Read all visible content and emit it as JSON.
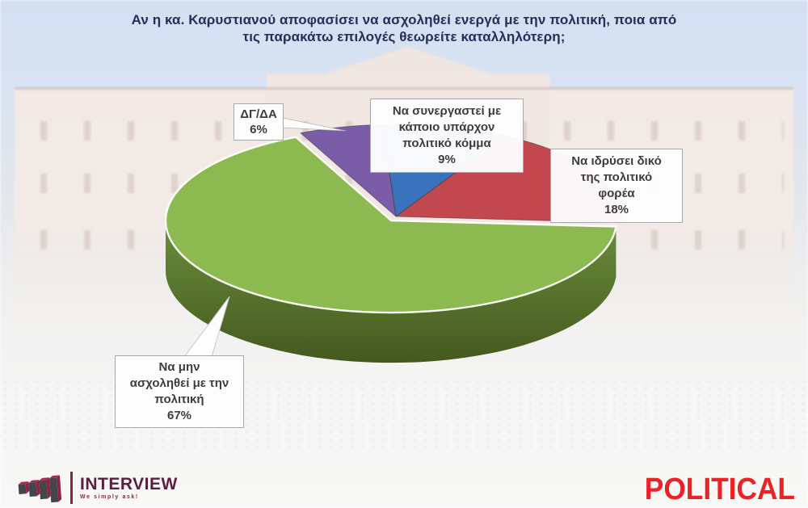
{
  "title": {
    "lines": [
      "Αν η κα. Καρυστιανού αποφασίσει να ασχοληθεί ενεργά με την πολιτική, ποια από",
      "τις παρακάτω επιλογές θεωρείτε καταλληλότερη;"
    ]
  },
  "chart_data": {
    "type": "pie",
    "style": "3d-exploded",
    "title": "Αν η κα. Καρυστιανού αποφασίσει να ασχοληθεί ενεργά με την πολιτική, ποια από τις παρακάτω επιλογές θεωρείτε καταλληλότερη;",
    "unit": "%",
    "start_angle_deg": 115,
    "direction": "clockwise",
    "slices": [
      {
        "name": "dgda",
        "label": "ΔΓ/ΔΑ",
        "value": 6,
        "color": "#7b5ca8"
      },
      {
        "name": "cooperate-existing-party",
        "label": "Να συνεργαστεί με κάποιο υπάρχον πολιτικό κόμμα",
        "value": 9,
        "color": "#3b72bd"
      },
      {
        "name": "found-own-party",
        "label": "Να ιδρύσει δικό της πολιτικό φορέα",
        "value": 18,
        "color": "#c3474e"
      },
      {
        "name": "not-engage",
        "label": "Να μην ασχοληθεί με την πολιτική",
        "value": 67,
        "color": "#8cba50",
        "exploded": true,
        "rim_top_color": "#6b8e3b",
        "rim_bottom_color": "#44591f"
      }
    ]
  },
  "callouts": [
    {
      "lines": [
        "ΔΓ/ΔΑ",
        "6%"
      ]
    },
    {
      "lines": [
        "Να συνεργαστεί με",
        "κάποιο υπάρχον",
        "πολιτικό κόμμα",
        "9%"
      ]
    },
    {
      "lines": [
        "Να ιδρύσει δικό",
        "της πολιτικό",
        "φορέα",
        "18%"
      ]
    },
    {
      "lines": [
        "Να μην",
        "ασχοληθεί με την",
        "πολιτική",
        "67%"
      ]
    }
  ],
  "footer": {
    "interview_name": "INTERVIEW",
    "interview_tagline": "We simply ask!",
    "political_name": "POLITICAL",
    "interview_color": "#5a1f3f",
    "political_color": "#ec2227"
  }
}
